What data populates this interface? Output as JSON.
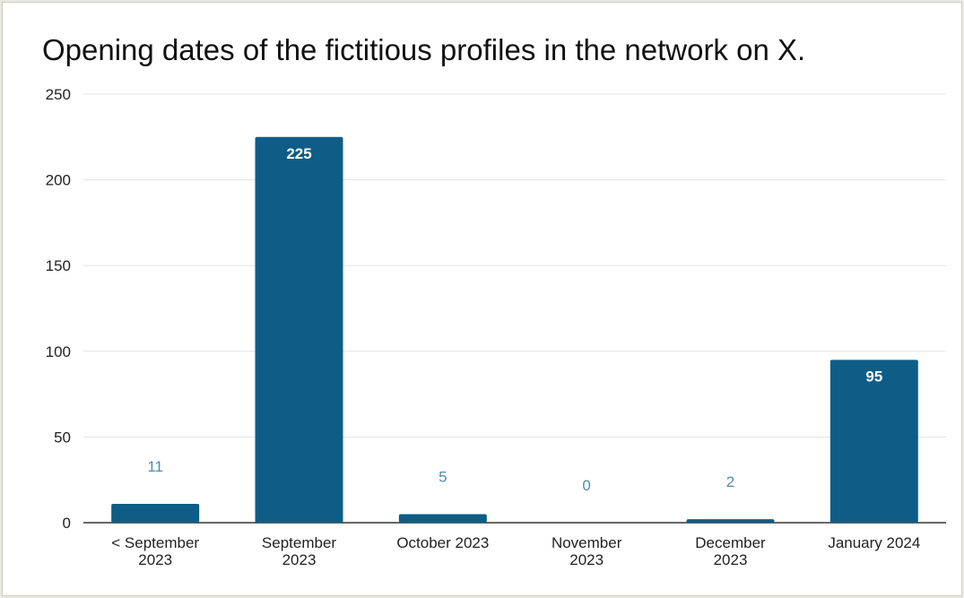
{
  "chart_data": {
    "type": "bar",
    "title": "Opening dates of the fictitious profiles in the network on X.",
    "categories": [
      [
        "< September",
        "2023"
      ],
      [
        "September",
        "2023"
      ],
      [
        "October 2023"
      ],
      [
        "November",
        "2023"
      ],
      [
        "December",
        "2023"
      ],
      [
        "January 2024"
      ]
    ],
    "values": [
      11,
      225,
      5,
      0,
      2,
      95
    ],
    "y_ticks": [
      "0",
      "50",
      "100",
      "150",
      "200",
      "250"
    ],
    "ylim": [
      0,
      250
    ],
    "xlabel": "",
    "ylabel": "",
    "grid": true,
    "legend": "none",
    "colors": {
      "bar": "#0d5d87",
      "label_inside": "#ffffff",
      "label_outside": "#4f8bb0",
      "grid": "#e3e3e3",
      "axis": "#333333",
      "text": "#222222"
    }
  }
}
